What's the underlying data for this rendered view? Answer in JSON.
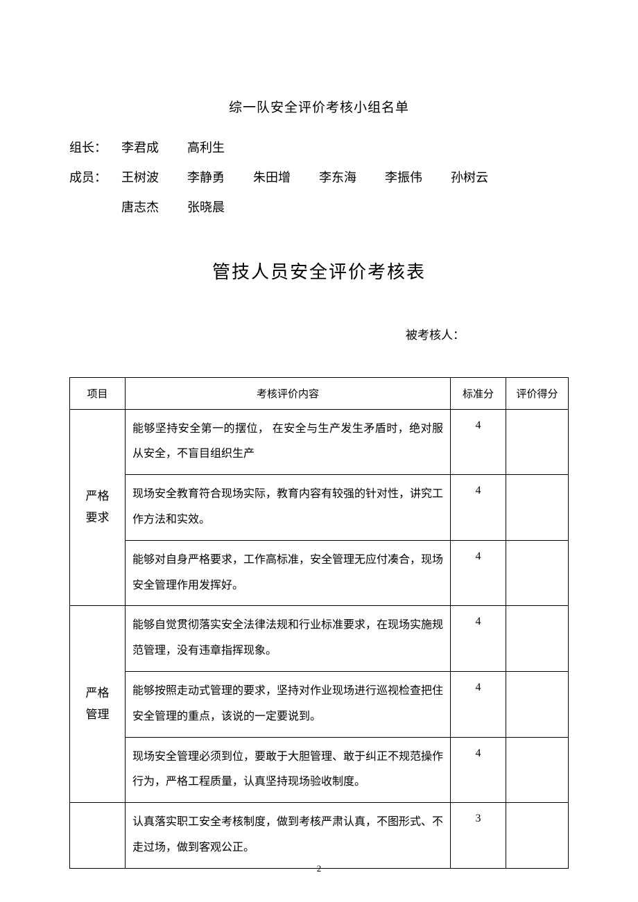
{
  "section_title": "综一队安全评价考核小组名单",
  "roster": {
    "leader_label": "组长：",
    "leaders": [
      "李君成",
      "高利生"
    ],
    "member_label": "成员：",
    "members_row1": [
      "王树波",
      "李静勇",
      "朱田增",
      "李东海",
      "李振伟",
      "孙树云"
    ],
    "members_row2": [
      "唐志杰",
      "张晓晨"
    ]
  },
  "main_title": "管技人员安全评价考核表",
  "assessee_label": "被考核人：",
  "table": {
    "headers": {
      "project": "项目",
      "content": "考核评价内容",
      "standard_score": "标准分",
      "result_score": "评价得分"
    },
    "groups": [
      {
        "project": "严格\n要求",
        "rows": [
          {
            "content": "能够坚持安全第一的摆位， 在安全与生产发生矛盾时，绝对服从安全，不盲目组织生产",
            "score": "4",
            "result": ""
          },
          {
            "content": "现场安全教育符合现场实际，教育内容有较强的针对性，讲究工作方法和实效。",
            "score": "4",
            "result": ""
          },
          {
            "content": "能够对自身严格要求，工作高标准，安全管理无应付凑合，现场安全管理作用发挥好。",
            "score": "4",
            "result": ""
          }
        ]
      },
      {
        "project": "严格\n管理",
        "rows": [
          {
            "content": "能够自觉贯彻落实安全法律法规和行业标准要求，在现场实施规范管理，没有违章指挥现象。",
            "score": "4",
            "result": ""
          },
          {
            "content": "能够按照走动式管理的要求，坚持对作业现场进行巡视检查把住安全管理的重点，该说的一定要说到。",
            "score": "4",
            "result": ""
          },
          {
            "content": "现场安全管理必须到位，要敢于大胆管理、敢于纠正不规范操作行为，严格工程质量，认真坚持现场验收制度。",
            "score": "4",
            "result": ""
          }
        ]
      },
      {
        "project": "",
        "rows": [
          {
            "content": "认真落实职工安全考核制度，做到考核严肃认真，不图形式、不走过场，做到客观公正。",
            "score": "3",
            "result": ""
          }
        ]
      }
    ]
  },
  "page_number": "2",
  "colors": {
    "text": "#000000",
    "background": "#ffffff",
    "border": "#000000"
  },
  "typography": {
    "body_font": "SimSun",
    "section_title_size": 19,
    "main_title_size": 26,
    "body_size": 18,
    "table_size": 16
  }
}
